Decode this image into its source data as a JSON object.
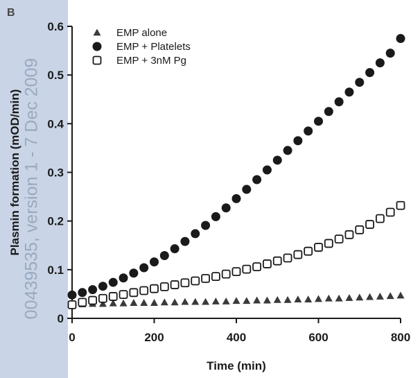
{
  "panel_label": "B",
  "watermark": "00439535, version 1 - 7 Dec 2009",
  "colors": {
    "sidebar": "#c9d5e6",
    "watermark": "#8a9bb4",
    "marks": "#1a1a1a",
    "triangle": "#3a3a3a"
  },
  "chart_data": {
    "type": "scatter",
    "xlabel": "Time (min)",
    "ylabel": "Plasmin formation (mOD/min)",
    "xlim": [
      0,
      800
    ],
    "ylim": [
      0,
      0.6
    ],
    "xticks": [
      0,
      200,
      400,
      600,
      800
    ],
    "yticks": [
      0,
      0.1,
      0.2,
      0.3,
      0.4,
      0.5,
      0.6
    ],
    "ytick_labels": [
      "0",
      "0.1",
      "0.2",
      "0.3",
      "0.4",
      "0.5",
      "0.6"
    ],
    "grid": false,
    "legend_position": "top-left",
    "series": [
      {
        "name": "EMP alone",
        "marker": "triangle",
        "x": [
          0,
          25,
          50,
          75,
          100,
          125,
          150,
          175,
          200,
          225,
          250,
          275,
          300,
          325,
          350,
          375,
          400,
          425,
          450,
          475,
          500,
          525,
          550,
          575,
          600,
          625,
          650,
          675,
          700,
          725,
          750,
          775,
          800
        ],
        "y": [
          0.028,
          0.029,
          0.03,
          0.03,
          0.031,
          0.031,
          0.032,
          0.032,
          0.032,
          0.033,
          0.033,
          0.034,
          0.034,
          0.034,
          0.035,
          0.035,
          0.036,
          0.036,
          0.037,
          0.037,
          0.038,
          0.038,
          0.039,
          0.039,
          0.04,
          0.041,
          0.041,
          0.042,
          0.043,
          0.044,
          0.045,
          0.046,
          0.047
        ]
      },
      {
        "name": "EMP + Platelets",
        "marker": "filled-circle",
        "x": [
          0,
          25,
          50,
          75,
          100,
          125,
          150,
          175,
          200,
          225,
          250,
          275,
          300,
          325,
          350,
          375,
          400,
          425,
          450,
          475,
          500,
          525,
          550,
          575,
          600,
          625,
          650,
          675,
          700,
          725,
          750,
          775,
          800
        ],
        "y": [
          0.048,
          0.053,
          0.059,
          0.066,
          0.074,
          0.083,
          0.093,
          0.104,
          0.116,
          0.129,
          0.143,
          0.158,
          0.174,
          0.191,
          0.209,
          0.227,
          0.246,
          0.265,
          0.285,
          0.305,
          0.325,
          0.345,
          0.365,
          0.385,
          0.405,
          0.425,
          0.445,
          0.465,
          0.485,
          0.505,
          0.525,
          0.545,
          0.575
        ]
      },
      {
        "name": "EMP + 3nM Pg",
        "marker": "open-square",
        "x": [
          0,
          25,
          50,
          75,
          100,
          125,
          150,
          175,
          200,
          225,
          250,
          275,
          300,
          325,
          350,
          375,
          400,
          425,
          450,
          475,
          500,
          525,
          550,
          575,
          600,
          625,
          650,
          675,
          700,
          725,
          750,
          775,
          800
        ],
        "y": [
          0.028,
          0.033,
          0.037,
          0.041,
          0.045,
          0.049,
          0.053,
          0.057,
          0.061,
          0.065,
          0.069,
          0.073,
          0.077,
          0.082,
          0.086,
          0.091,
          0.096,
          0.101,
          0.106,
          0.112,
          0.118,
          0.124,
          0.131,
          0.138,
          0.146,
          0.154,
          0.163,
          0.172,
          0.182,
          0.193,
          0.205,
          0.218,
          0.232
        ]
      }
    ]
  }
}
